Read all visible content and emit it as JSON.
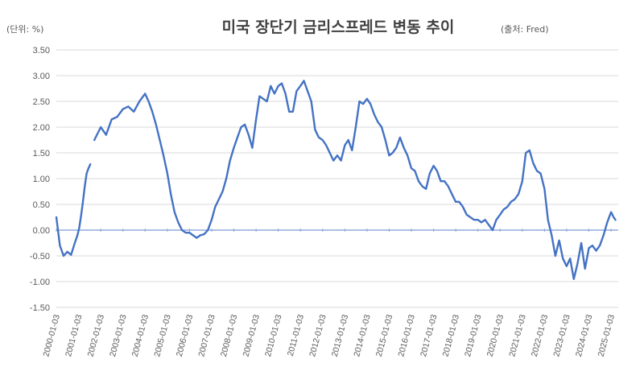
{
  "chart_data": {
    "type": "line",
    "title": "미국 장단기 금리스프레드 변동 추이",
    "unit_label": "(단위: %)",
    "source_label": "(출처: Fred)",
    "xlabel": "",
    "ylabel": "",
    "ylim": [
      -1.5,
      3.5
    ],
    "yticks": [
      "3.50",
      "3.00",
      "2.50",
      "2.00",
      "1.50",
      "1.00",
      "0.50",
      "0.00",
      "-0.50",
      "-1.00",
      "-1.50"
    ],
    "xticks": [
      "2000-01-03",
      "2001-01-03",
      "2002-01-03",
      "2003-01-03",
      "2004-01-03",
      "2005-01-03",
      "2006-01-03",
      "2007-01-03",
      "2008-01-03",
      "2009-01-03",
      "2010-01-03",
      "2011-01-03",
      "2012-01-03",
      "2013-01-03",
      "2014-01-03",
      "2015-01-03",
      "2016-01-03",
      "2017-01-03",
      "2018-01-03",
      "2019-01-03",
      "2020-01-03",
      "2021-01-03",
      "2022-01-03",
      "2023-01-03",
      "2024-01-03",
      "2025-01-03"
    ],
    "grid": true,
    "series": [
      {
        "color": "#4472c4",
        "segments": [
          {
            "x": [
              "2000-01-03",
              "2000-03-01",
              "2000-05-01",
              "2000-07-01",
              "2000-09-01",
              "2000-11-01",
              "2000-12-15",
              "2001-01-15",
              "2001-02-15",
              "2001-03-15",
              "2001-04-15",
              "2001-05-15",
              "2001-06-15",
              "2001-07-15"
            ],
            "y": [
              0.25,
              -0.3,
              -0.5,
              -0.42,
              -0.48,
              -0.25,
              -0.1,
              0.05,
              0.3,
              0.55,
              0.85,
              1.1,
              1.2,
              1.28
            ]
          },
          {
            "x": [
              "2001-09-20",
              "2002-01-03",
              "2002-04-01",
              "2002-07-01",
              "2002-10-01",
              "2003-01-03",
              "2003-04-01",
              "2003-07-01",
              "2003-10-01",
              "2004-01-03",
              "2004-03-01",
              "2004-05-01",
              "2004-07-01",
              "2004-09-01",
              "2004-11-01",
              "2005-01-03",
              "2005-03-01",
              "2005-05-01",
              "2005-07-01",
              "2005-09-01",
              "2005-11-01",
              "2006-01-03",
              "2006-03-01",
              "2006-05-01",
              "2006-07-01",
              "2006-09-01",
              "2006-11-01",
              "2007-01-03",
              "2007-03-01",
              "2007-05-01",
              "2007-07-01",
              "2007-09-01",
              "2007-11-01",
              "2008-01-03",
              "2008-03-01",
              "2008-05-01",
              "2008-07-01",
              "2008-09-01",
              "2008-11-01"
            ],
            "y": [
              1.75,
              2.0,
              1.85,
              2.15,
              2.2,
              2.35,
              2.4,
              2.3,
              2.5,
              2.65,
              2.5,
              2.3,
              2.05,
              1.75,
              1.45,
              1.1,
              0.7,
              0.35,
              0.15,
              0.0,
              -0.05,
              -0.05,
              -0.1,
              -0.15,
              -0.1,
              -0.08,
              0.0,
              0.2,
              0.45,
              0.6,
              0.75,
              1.0,
              1.35,
              1.6,
              1.8,
              2.0,
              2.05,
              1.85,
              1.6
            ]
          },
          {
            "x": [
              "2008-11-02",
              "2009-01-03",
              "2009-03-01",
              "2009-05-01",
              "2009-07-01",
              "2009-09-01",
              "2009-11-01",
              "2010-01-03",
              "2010-03-01",
              "2010-05-01",
              "2010-07-01",
              "2010-09-01",
              "2010-11-01",
              "2011-01-03",
              "2011-03-01",
              "2011-05-01",
              "2011-07-01",
              "2011-09-01",
              "2011-11-01",
              "2012-01-03",
              "2012-03-01",
              "2012-05-01",
              "2012-07-01",
              "2012-09-01",
              "2012-11-01",
              "2013-01-03",
              "2013-03-01",
              "2013-05-01",
              "2013-07-01",
              "2013-09-01",
              "2013-11-01",
              "2014-01-03",
              "2014-03-01",
              "2014-05-01",
              "2014-07-01",
              "2014-09-01",
              "2014-11-01",
              "2015-01-03",
              "2015-03-01",
              "2015-05-01",
              "2015-07-01",
              "2015-09-01",
              "2015-11-01",
              "2016-01-03",
              "2016-03-01",
              "2016-05-01",
              "2016-07-01",
              "2016-09-01",
              "2016-11-01",
              "2017-01-03",
              "2017-03-01",
              "2017-05-01",
              "2017-07-01",
              "2017-09-01",
              "2017-11-01",
              "2018-01-03",
              "2018-03-01",
              "2018-05-01",
              "2018-07-01",
              "2018-09-01",
              "2018-11-01",
              "2019-01-03",
              "2019-03-01",
              "2019-05-01",
              "2019-07-01",
              "2019-09-01",
              "2019-11-01",
              "2020-01-03",
              "2020-03-01",
              "2020-05-01",
              "2020-07-01",
              "2020-09-01",
              "2020-11-01",
              "2021-01-03",
              "2021-03-01",
              "2021-05-01",
              "2021-07-01",
              "2021-09-01",
              "2021-11-01",
              "2022-01-03",
              "2022-03-01",
              "2022-05-01",
              "2022-07-01",
              "2022-09-01",
              "2022-11-01",
              "2023-01-03",
              "2023-03-01",
              "2023-05-01",
              "2023-07-01",
              "2023-09-01",
              "2023-11-01",
              "2024-01-03",
              "2024-03-01",
              "2024-05-01",
              "2024-07-01",
              "2024-09-01",
              "2024-11-01",
              "2025-01-03",
              "2025-02-15",
              "2025-03-15"
            ],
            "y": [
              1.6,
              2.15,
              2.6,
              2.55,
              2.5,
              2.8,
              2.65,
              2.8,
              2.85,
              2.65,
              2.3,
              2.3,
              2.7,
              2.8,
              2.9,
              2.7,
              2.5,
              1.95,
              1.8,
              1.75,
              1.65,
              1.5,
              1.35,
              1.45,
              1.35,
              1.65,
              1.75,
              1.55,
              2.0,
              2.5,
              2.45,
              2.55,
              2.45,
              2.25,
              2.1,
              2.0,
              1.75,
              1.45,
              1.5,
              1.6,
              1.8,
              1.6,
              1.45,
              1.2,
              1.15,
              0.95,
              0.85,
              0.8,
              1.1,
              1.25,
              1.15,
              0.95,
              0.95,
              0.85,
              0.7,
              0.55,
              0.55,
              0.45,
              0.3,
              0.25,
              0.2,
              0.2,
              0.15,
              0.2,
              0.1,
              0.0,
              0.2,
              0.3,
              0.4,
              0.45,
              0.55,
              0.6,
              0.7,
              0.95,
              1.5,
              1.55,
              1.3,
              1.15,
              1.1,
              0.8,
              0.2,
              -0.1,
              -0.5,
              -0.2,
              -0.55,
              -0.7,
              -0.55,
              -0.95,
              -0.65,
              -0.25,
              -0.75,
              -0.35,
              -0.3,
              -0.4,
              -0.3,
              -0.1,
              0.15,
              0.35,
              0.25,
              0.2
            ]
          }
        ]
      }
    ]
  }
}
